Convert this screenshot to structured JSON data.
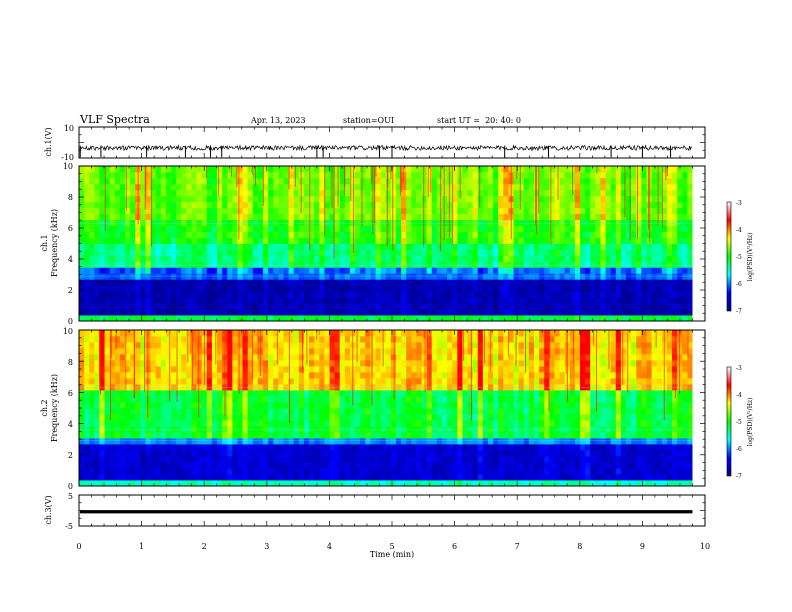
{
  "header": {
    "title": "VLF Spectra",
    "date": "Apr. 13, 2023",
    "station": "station=OUI",
    "start": "start UT =  20: 40: 0"
  },
  "chart_data": [
    {
      "type": "line",
      "panel": "ch1-waveform",
      "ylabel": "ch.1(V)",
      "ylim": [
        -10,
        10
      ],
      "yticks": [
        "10",
        "-10"
      ],
      "xlim": [
        0,
        10
      ],
      "baseline_v": -3.5,
      "noise_band_v": [
        -5,
        -2
      ],
      "spikes_min": [
        0.02,
        0.35,
        1.08,
        1.7,
        2.1,
        2.28,
        3.8,
        3.9,
        4.8,
        5.0,
        6.8,
        7.5,
        8.5,
        9.0,
        9.45
      ],
      "color": "#000000"
    },
    {
      "type": "heatmap",
      "panel": "ch1-spectrogram",
      "ylabel": "Frequency (kHz)",
      "channel_label": "ch.1",
      "xlim": [
        0,
        9.8
      ],
      "ylim": [
        0,
        10
      ],
      "yticks": [
        "0",
        "2",
        "4",
        "6",
        "8",
        "10"
      ],
      "z_label": "log(PSD)(V²/Hz)",
      "zlim": [
        -7,
        -3
      ],
      "zticks": [
        "-3",
        "-4",
        "-5",
        "-6",
        "-7"
      ],
      "colormap": [
        "#000080",
        "#0000ff",
        "#00ffff",
        "#00ff00",
        "#ffff00",
        "#ff0000",
        "#ffffff"
      ],
      "band_levels": [
        {
          "f": [
            0,
            0.3
          ],
          "log_psd": -4.8
        },
        {
          "f": [
            0.3,
            2.6
          ],
          "log_psd": -6.7
        },
        {
          "f": [
            2.6,
            3.4
          ],
          "log_psd": -5.9
        },
        {
          "f": [
            3.4,
            5.0
          ],
          "log_psd": -5.0
        },
        {
          "f": [
            5.0,
            6.5
          ],
          "log_psd": -4.6
        },
        {
          "f": [
            6.5,
            10
          ],
          "log_psd": -4.3
        }
      ]
    },
    {
      "type": "heatmap",
      "panel": "ch2-spectrogram",
      "ylabel": "Frequency (kHz)",
      "channel_label": "ch.2",
      "xlim": [
        0,
        9.8
      ],
      "ylim": [
        0,
        10
      ],
      "yticks": [
        "0",
        "2",
        "4",
        "6",
        "8",
        "10"
      ],
      "z_label": "log(PSD)(V²/Hz)",
      "zlim": [
        -7,
        -3
      ],
      "zticks": [
        "-3",
        "-4",
        "-5",
        "-6",
        "-7"
      ],
      "colormap": [
        "#000080",
        "#0000ff",
        "#00ffff",
        "#00ff00",
        "#ffff00",
        "#ff0000",
        "#ffffff"
      ],
      "band_levels": [
        {
          "f": [
            0,
            0.3
          ],
          "log_psd": -5.2
        },
        {
          "f": [
            0.3,
            2.7
          ],
          "log_psd": -6.5
        },
        {
          "f": [
            2.7,
            3.0
          ],
          "log_psd": -5.8
        },
        {
          "f": [
            3.0,
            6.0
          ],
          "log_psd": -4.8
        },
        {
          "f": [
            6.0,
            10
          ],
          "log_psd": -3.7
        }
      ]
    },
    {
      "type": "line",
      "panel": "ch3-waveform",
      "ylabel": "ch.3(V)",
      "ylim": [
        -5,
        5
      ],
      "yticks": [
        "5",
        "-5"
      ],
      "xlim": [
        0,
        10
      ],
      "baseline_v": -0.4,
      "color": "#000000"
    }
  ],
  "x_axis": {
    "label": "Time (min)",
    "ticks": [
      "0",
      "1",
      "2",
      "3",
      "4",
      "5",
      "6",
      "7",
      "8",
      "9",
      "10"
    ]
  }
}
